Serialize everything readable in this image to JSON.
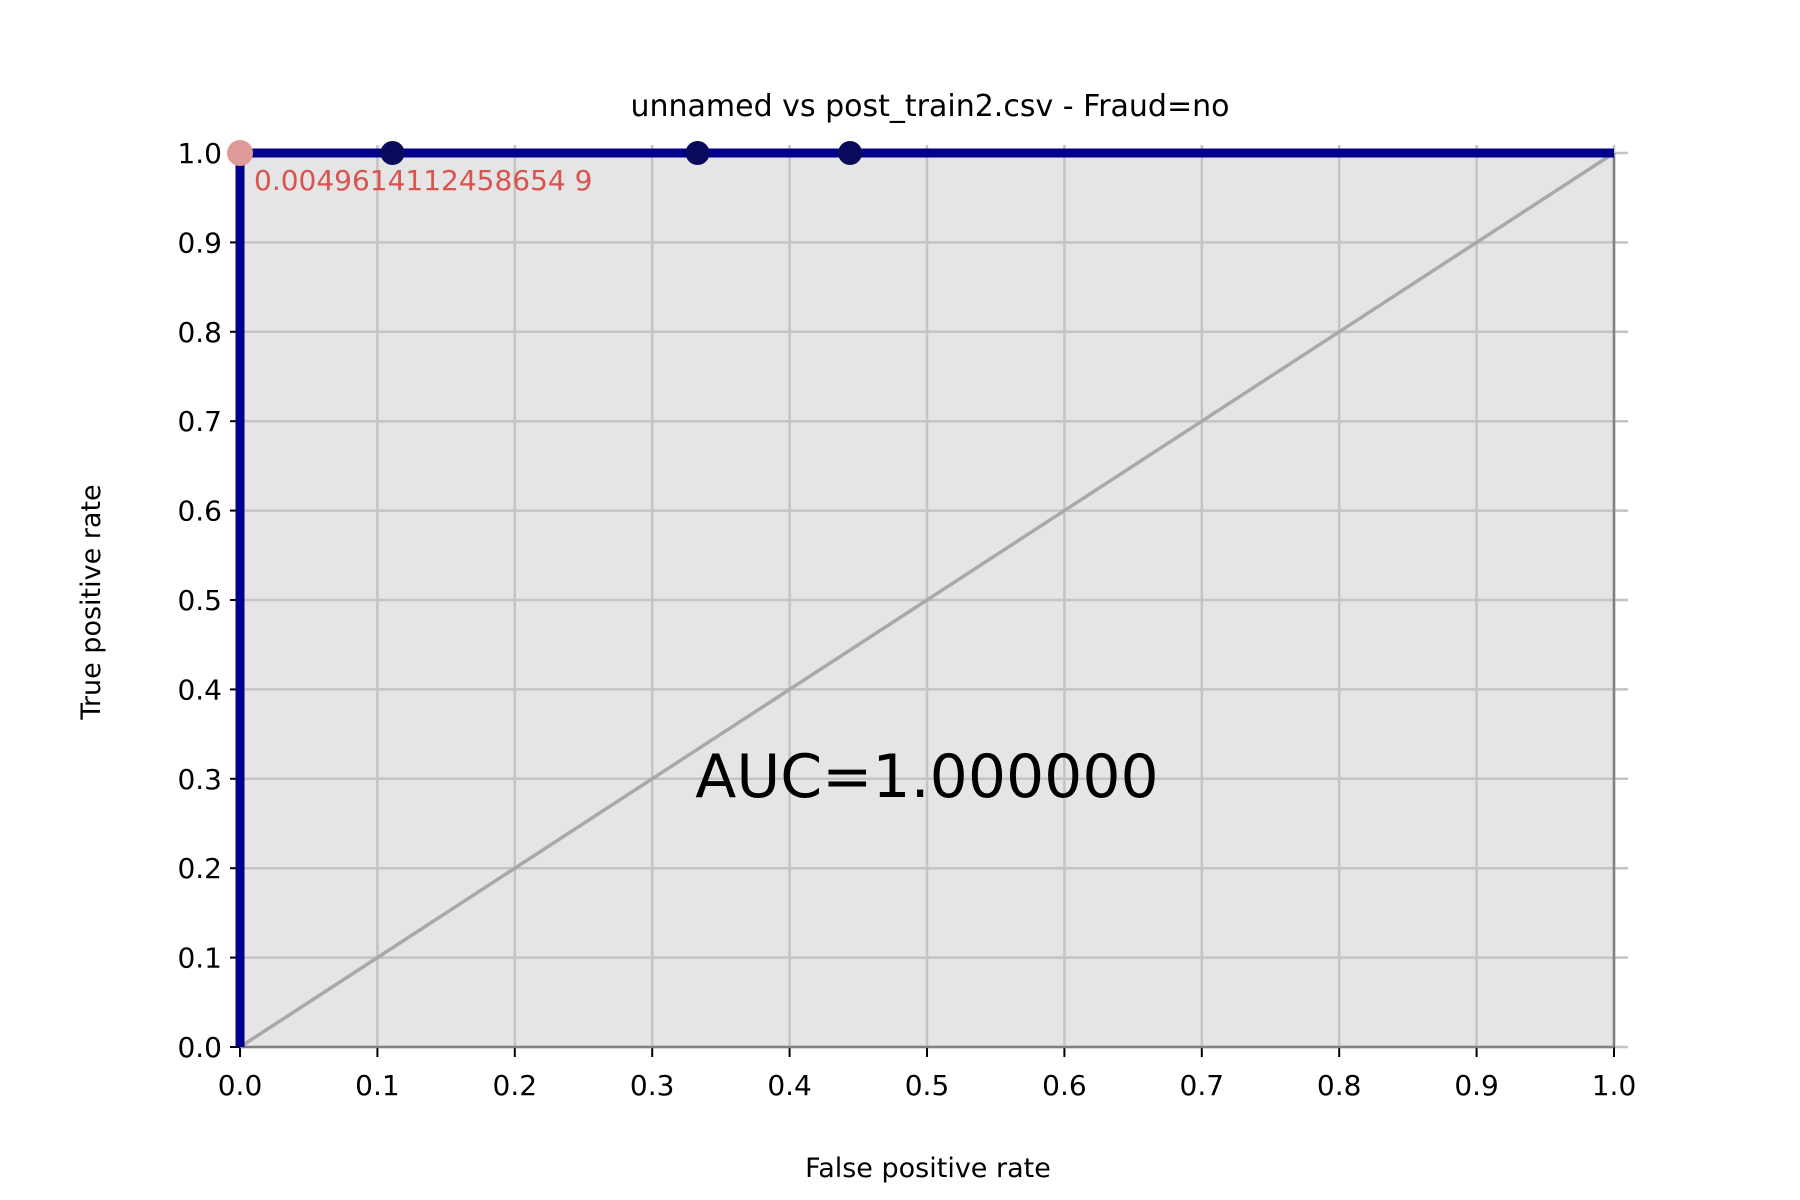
{
  "chart_data": {
    "type": "line",
    "title": "unnamed vs post_train2.csv - Fraud=no",
    "xlabel": "False positive rate",
    "ylabel": "True positive rate",
    "xlim": [
      0,
      1
    ],
    "ylim": [
      0,
      1
    ],
    "grid": true,
    "xticks": [
      "0.0",
      "0.1",
      "0.2",
      "0.3",
      "0.4",
      "0.5",
      "0.6",
      "0.7",
      "0.8",
      "0.9",
      "1.0"
    ],
    "yticks": [
      "0.0",
      "0.1",
      "0.2",
      "0.3",
      "0.4",
      "0.5",
      "0.6",
      "0.7",
      "0.8",
      "0.9",
      "1.0"
    ],
    "roc_curve": {
      "color": "#00008b",
      "points": [
        [
          0,
          0
        ],
        [
          0,
          1
        ],
        [
          0.111,
          1
        ],
        [
          0.333,
          1
        ],
        [
          0.444,
          1
        ],
        [
          1,
          1
        ]
      ]
    },
    "markers": {
      "color": "#0a0a5a",
      "points": [
        [
          0.111,
          1
        ],
        [
          0.333,
          1
        ],
        [
          0.444,
          1
        ]
      ]
    },
    "highlight_point": {
      "x": 0,
      "y": 1,
      "color": "#e09a9a",
      "label": "0.0049614112458654 9",
      "label_color": "#d9534f"
    },
    "diagonal": {
      "color": "#a9a9a9",
      "points": [
        [
          0,
          0
        ],
        [
          1,
          1
        ]
      ]
    },
    "annotation": "AUC=1.000000",
    "plot_background": "#e5e5e5"
  }
}
